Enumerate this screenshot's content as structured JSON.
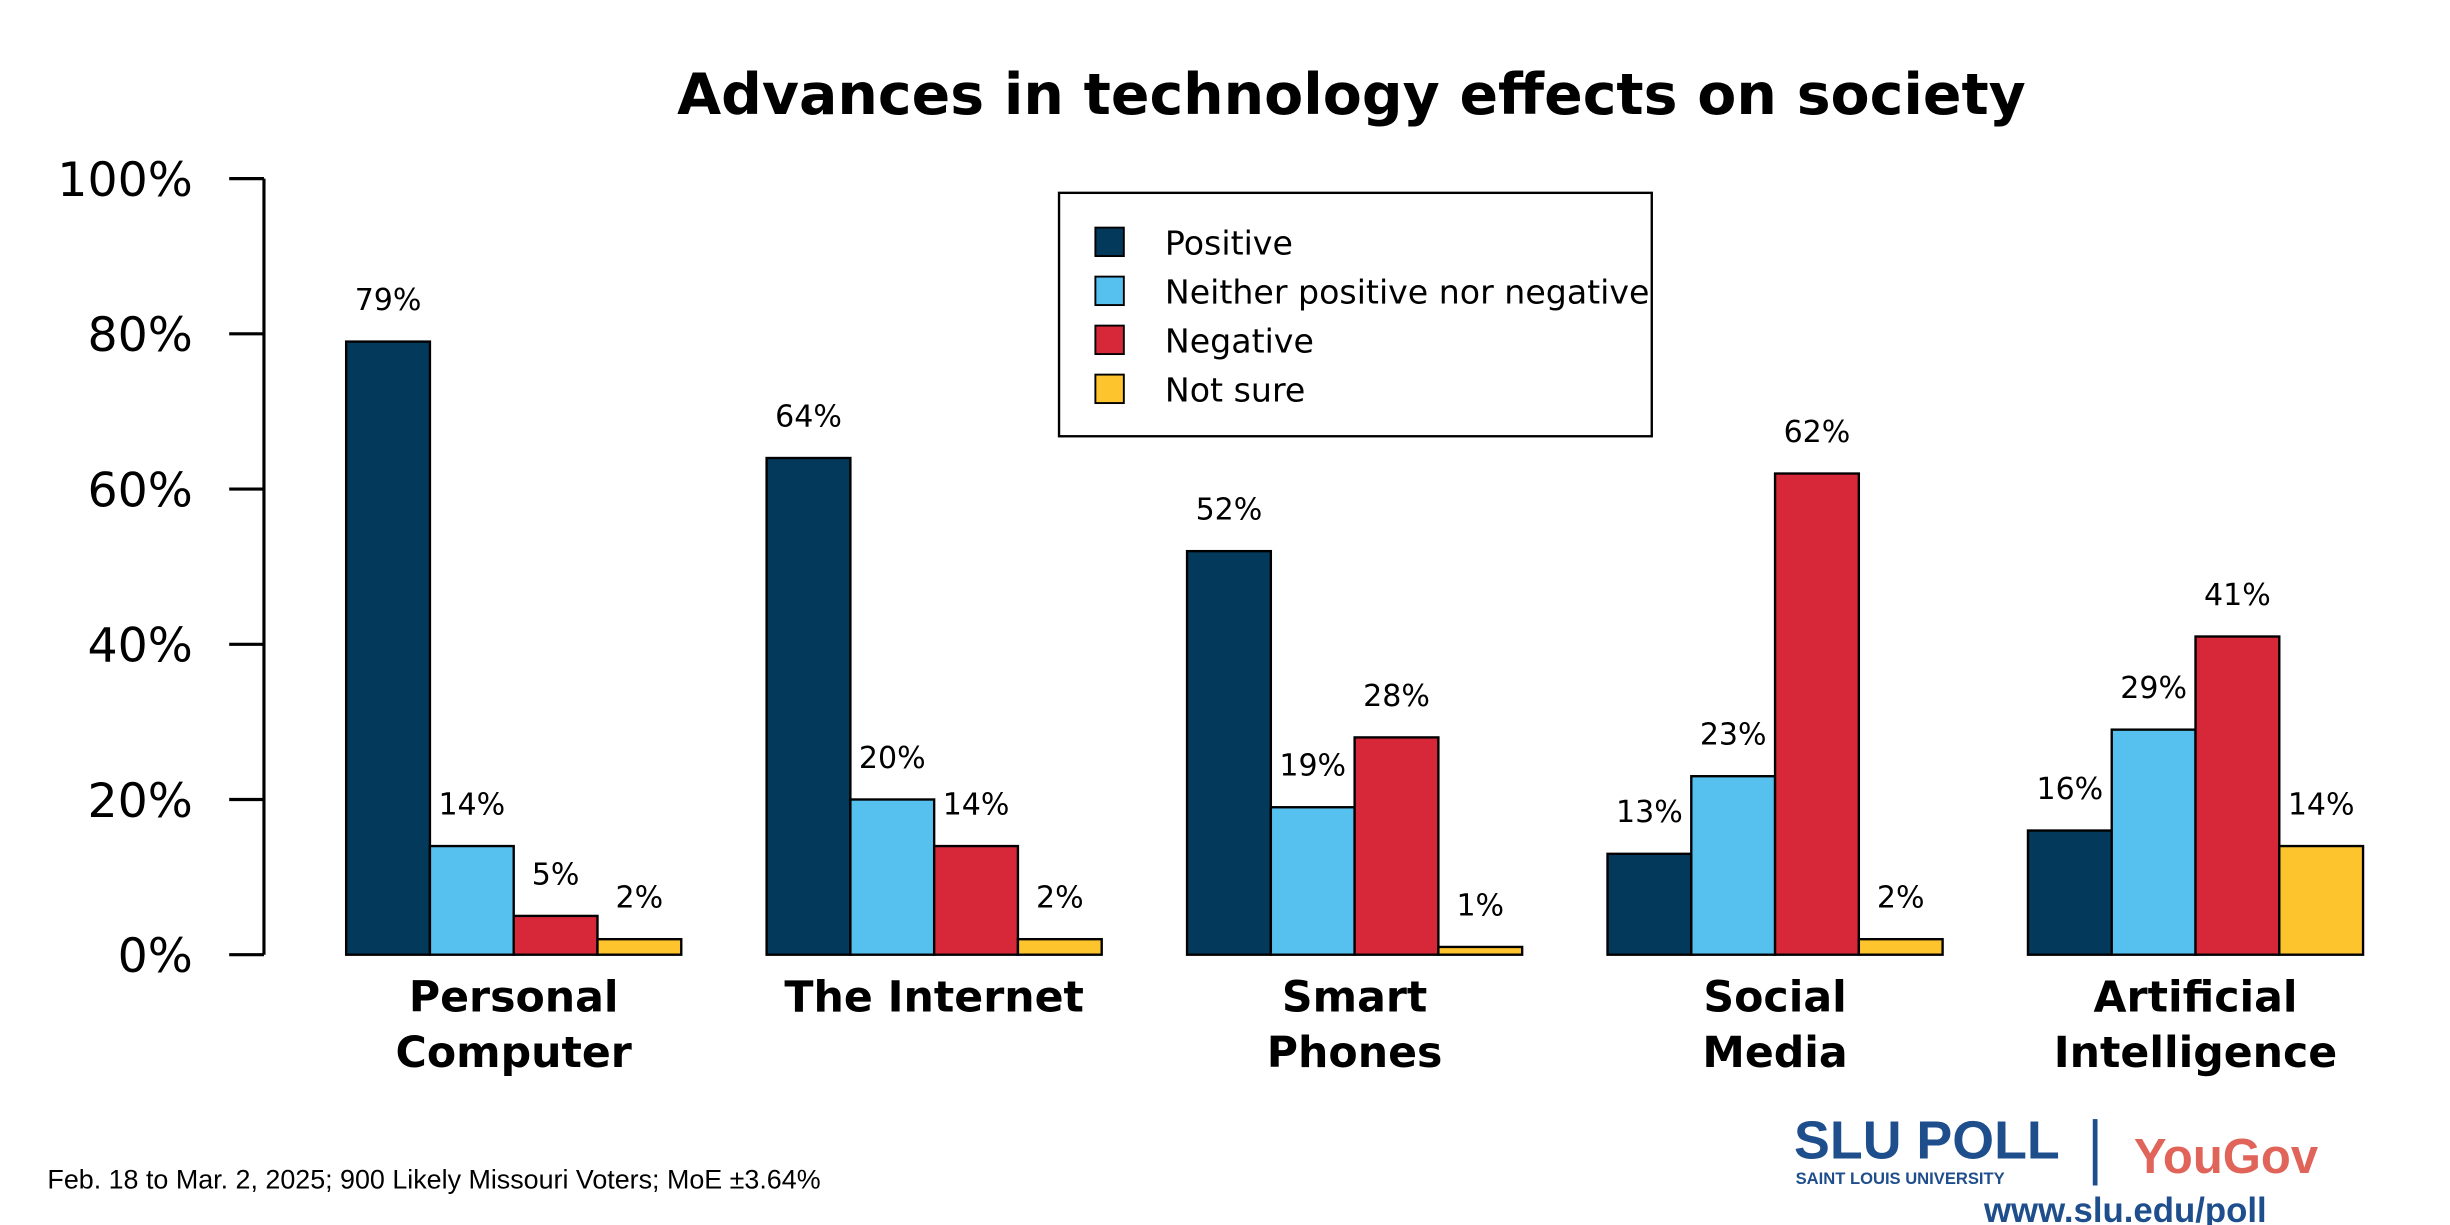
{
  "chart_data": {
    "type": "bar",
    "title": "Advances in technology effects on society",
    "categories": [
      [
        "Personal",
        "Computer"
      ],
      [
        "The Internet"
      ],
      [
        "Smart",
        "Phones"
      ],
      [
        "Social",
        "Media"
      ],
      [
        "Artificial",
        "Intelligence"
      ]
    ],
    "series": [
      {
        "name": "Positive",
        "color": "#03395a",
        "values": [
          79,
          64,
          52,
          13,
          16
        ]
      },
      {
        "name": "Neither positive nor negative",
        "color": "#56c1ef",
        "values": [
          14,
          20,
          19,
          23,
          29
        ]
      },
      {
        "name": "Negative",
        "color": "#d62839",
        "values": [
          5,
          14,
          28,
          62,
          41
        ]
      },
      {
        "name": "Not sure",
        "color": "#fec42d",
        "values": [
          2,
          2,
          1,
          2,
          14
        ]
      }
    ],
    "value_suffix": "%",
    "ylim": [
      0,
      100
    ],
    "yticks": [
      "0%",
      "20%",
      "40%",
      "60%",
      "80%",
      "100%"
    ],
    "grid": false,
    "legend_placement": "top-center"
  },
  "footer": {
    "note": "Feb. 18 to Mar. 2, 2025; 900 Likely Missouri Voters; MoE ±3.64%",
    "logo_slu": "SLU POLL",
    "logo_slu_sub": "SAINT LOUIS UNIVERSITY",
    "logo_yougov": "YouGov",
    "url": "www.slu.edu/poll"
  }
}
